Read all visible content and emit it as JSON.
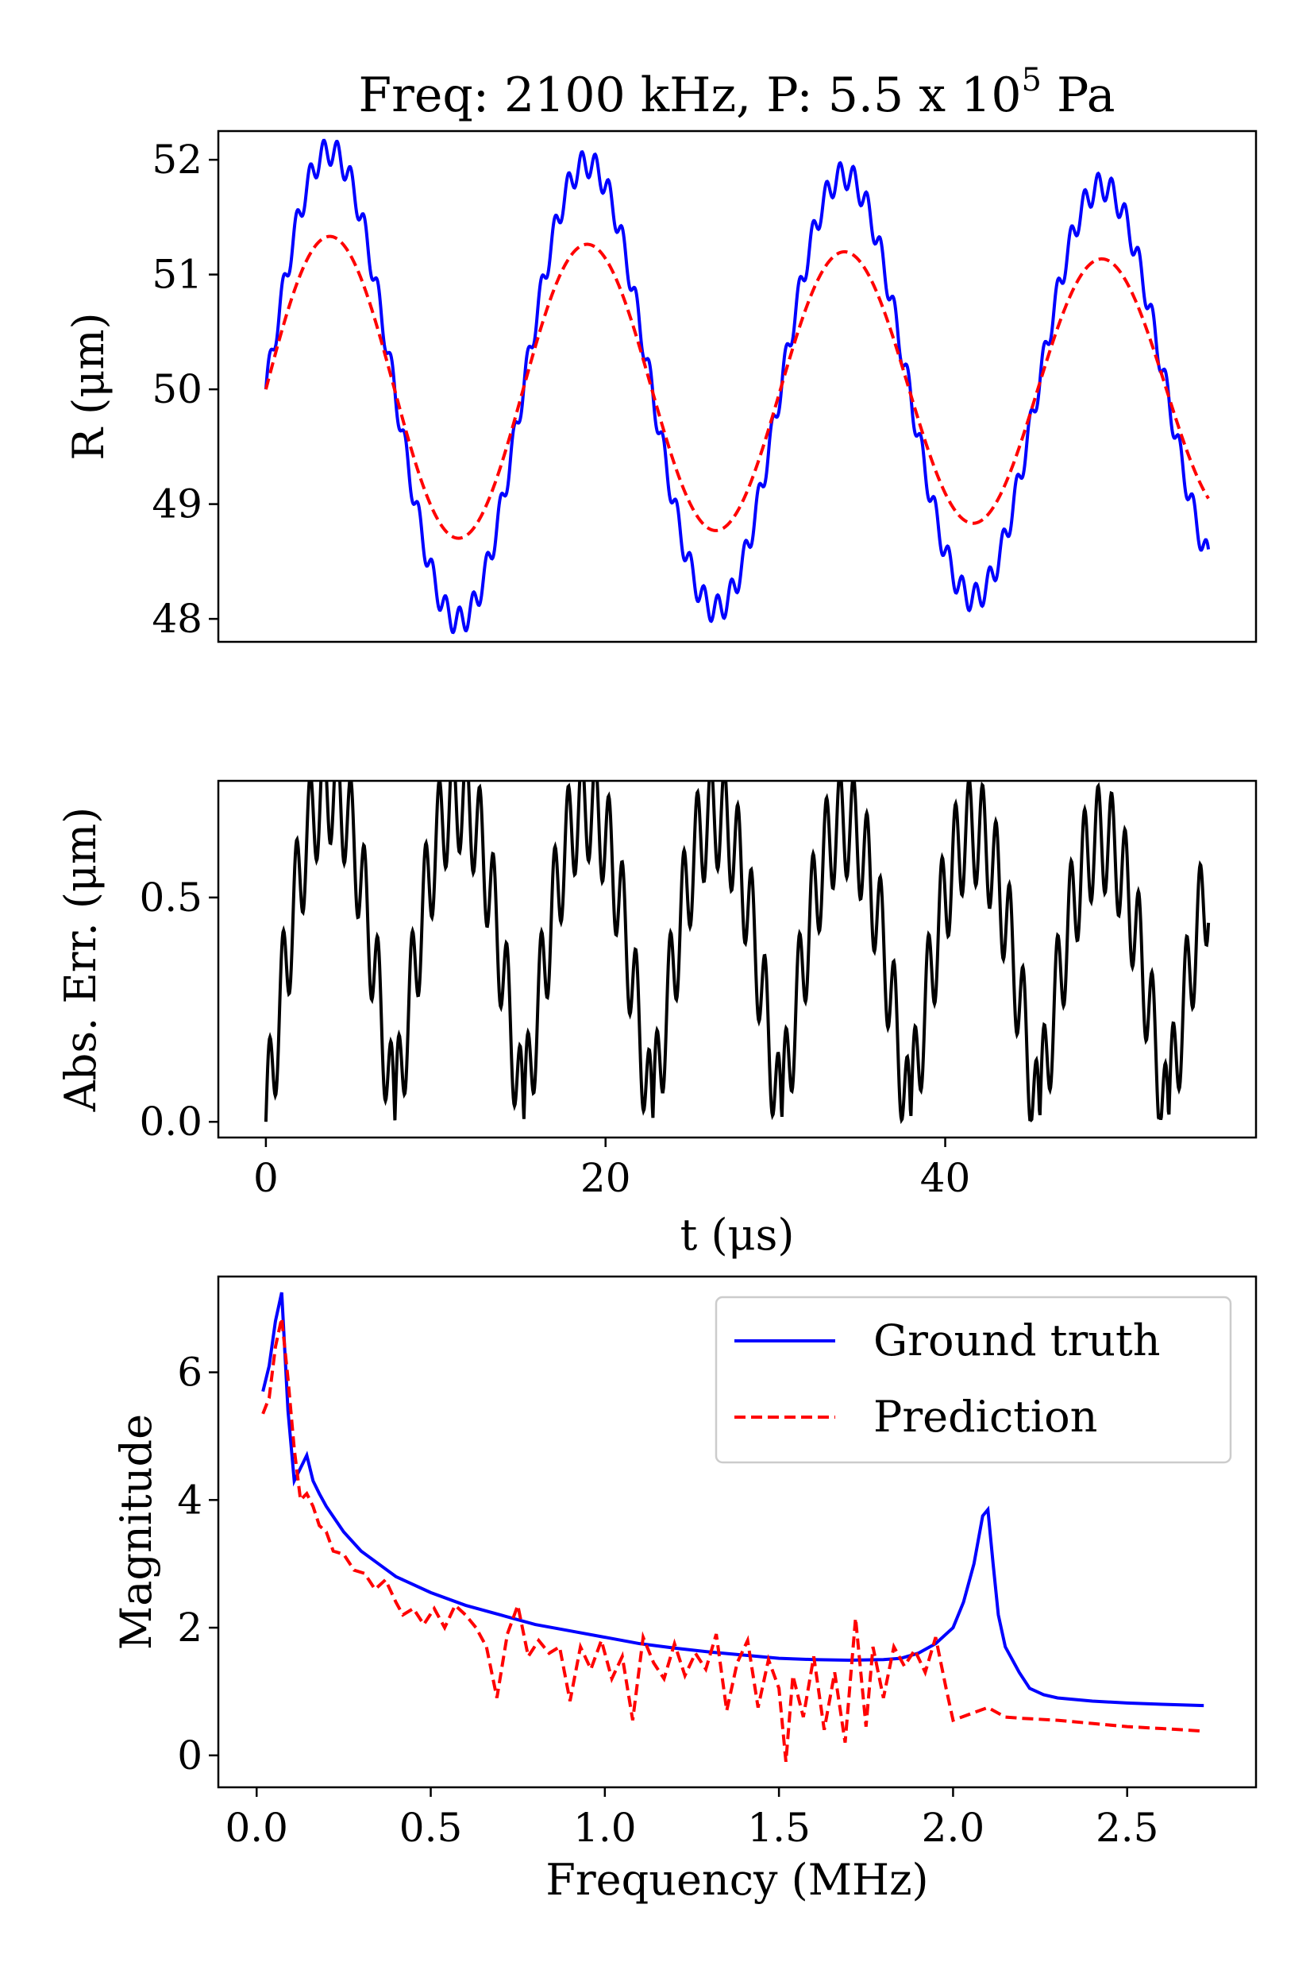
{
  "colors": {
    "ground_truth": "#0000ff",
    "prediction": "#ff0000",
    "error": "#000000"
  },
  "chart_data": [
    {
      "type": "line",
      "title": "Freq: 2100 kHz, P: 5.5 x 10⁵ Pa",
      "title_main": "Freq: 2100 kHz, P: 5.5 x 10",
      "title_sup": "5",
      "title_tail": " Pa",
      "xlabel": "",
      "ylabel": "R (μm)",
      "xlim": [
        -2.8,
        58.3
      ],
      "ylim": [
        47.8,
        52.25
      ],
      "xticks": [],
      "yticks": [
        48,
        49,
        50,
        51,
        52
      ],
      "ytick_labels": [
        "48",
        "49",
        "50",
        "51",
        "52"
      ],
      "grid": false,
      "series": [
        {
          "key": "gt",
          "t_range": [
            0,
            55.5
          ],
          "model": {
            "base": 50,
            "A0": 2.1,
            "decay": 0.0035,
            "period": 15.15,
            "ripple": 0.12,
            "ripple_period": 0.8
          }
        },
        {
          "key": "pred",
          "t_range": [
            0,
            55.5
          ],
          "model": {
            "base": 50,
            "A0": 1.35,
            "decay": 0.0035,
            "period": 15.15,
            "ripple": 0.0,
            "ripple_period": 0.8
          }
        }
      ]
    },
    {
      "type": "line",
      "title": "",
      "xlabel": "t (μs)",
      "ylabel": "Abs. Err. (μm)",
      "xlim": [
        -2.8,
        58.3
      ],
      "ylim": [
        -0.035,
        0.76
      ],
      "xticks": [
        0,
        20,
        40
      ],
      "xtick_labels": [
        "0",
        "20",
        "40"
      ],
      "yticks": [
        0.0,
        0.5
      ],
      "ytick_labels": [
        "0.0",
        "0.5"
      ],
      "grid": false,
      "series": [
        {
          "key": "err",
          "t_range": [
            0,
            55.5
          ],
          "derived": "abs(gt - pred)"
        }
      ]
    },
    {
      "type": "line",
      "title": "",
      "xlabel": "Frequency (MHz)",
      "ylabel": "Magnitude",
      "xlim": [
        -0.11,
        2.87
      ],
      "ylim": [
        -0.5,
        7.5
      ],
      "xticks": [
        0.0,
        0.5,
        1.0,
        1.5,
        2.0,
        2.5
      ],
      "xtick_labels": [
        "0.0",
        "0.5",
        "1.0",
        "1.5",
        "2.0",
        "2.5"
      ],
      "yticks": [
        0,
        2,
        4,
        6
      ],
      "ytick_labels": [
        "0",
        "2",
        "4",
        "6"
      ],
      "grid": false,
      "legend_position": "upper-right",
      "series": [
        {
          "key": "gt",
          "name": "Ground truth",
          "style": "solid",
          "x": [
            0.018,
            0.036,
            0.054,
            0.072,
            0.09,
            0.108,
            0.126,
            0.144,
            0.162,
            0.18,
            0.2,
            0.25,
            0.3,
            0.35,
            0.4,
            0.5,
            0.6,
            0.7,
            0.8,
            0.9,
            1.0,
            1.1,
            1.2,
            1.3,
            1.4,
            1.5,
            1.6,
            1.7,
            1.8,
            1.85,
            1.9,
            1.95,
            2.0,
            2.03,
            2.06,
            2.085,
            2.1,
            2.115,
            2.13,
            2.15,
            2.17,
            2.19,
            2.22,
            2.26,
            2.3,
            2.4,
            2.5,
            2.6,
            2.72
          ],
          "y": [
            5.7,
            6.1,
            6.8,
            7.25,
            5.4,
            4.3,
            4.5,
            4.7,
            4.3,
            4.1,
            3.9,
            3.5,
            3.2,
            3.0,
            2.8,
            2.55,
            2.35,
            2.2,
            2.05,
            1.95,
            1.85,
            1.75,
            1.68,
            1.62,
            1.57,
            1.52,
            1.5,
            1.49,
            1.5,
            1.52,
            1.6,
            1.75,
            2.0,
            2.4,
            3.0,
            3.75,
            3.85,
            3.0,
            2.2,
            1.7,
            1.5,
            1.3,
            1.05,
            0.95,
            0.9,
            0.85,
            0.82,
            0.8,
            0.78
          ]
        },
        {
          "key": "pred",
          "name": "Prediction",
          "style": "dashed",
          "x": [
            0.018,
            0.036,
            0.054,
            0.072,
            0.09,
            0.108,
            0.126,
            0.144,
            0.162,
            0.18,
            0.2,
            0.22,
            0.25,
            0.28,
            0.31,
            0.34,
            0.37,
            0.4,
            0.42,
            0.45,
            0.48,
            0.51,
            0.54,
            0.57,
            0.6,
            0.63,
            0.66,
            0.69,
            0.72,
            0.75,
            0.78,
            0.81,
            0.84,
            0.87,
            0.9,
            0.93,
            0.96,
            0.99,
            1.02,
            1.05,
            1.08,
            1.11,
            1.14,
            1.17,
            1.2,
            1.23,
            1.26,
            1.29,
            1.32,
            1.35,
            1.38,
            1.41,
            1.44,
            1.47,
            1.5,
            1.52,
            1.54,
            1.57,
            1.6,
            1.63,
            1.66,
            1.69,
            1.72,
            1.75,
            1.77,
            1.8,
            1.83,
            1.86,
            1.89,
            1.92,
            1.95,
            1.98,
            2.0,
            2.05,
            2.1,
            2.15,
            2.2,
            2.3,
            2.4,
            2.5,
            2.6,
            2.72
          ],
          "y": [
            5.35,
            5.6,
            6.4,
            6.85,
            5.9,
            4.8,
            4.0,
            4.1,
            3.9,
            3.6,
            3.5,
            3.2,
            3.15,
            2.9,
            2.85,
            2.6,
            2.75,
            2.4,
            2.2,
            2.3,
            2.05,
            2.3,
            2.0,
            2.35,
            2.2,
            2.0,
            1.7,
            0.9,
            1.9,
            2.35,
            1.55,
            1.8,
            1.6,
            1.7,
            0.85,
            1.7,
            1.35,
            1.8,
            1.2,
            1.55,
            0.55,
            1.85,
            1.45,
            1.2,
            1.75,
            1.25,
            1.6,
            1.35,
            1.9,
            0.7,
            1.45,
            1.8,
            0.75,
            1.5,
            1.05,
            -0.1,
            1.25,
            0.6,
            1.55,
            0.4,
            1.3,
            0.2,
            2.15,
            0.45,
            1.7,
            0.9,
            1.7,
            1.4,
            1.65,
            1.3,
            1.85,
            1.05,
            0.55,
            0.65,
            0.75,
            0.6,
            0.58,
            0.55,
            0.5,
            0.45,
            0.42,
            0.38
          ]
        }
      ]
    }
  ]
}
